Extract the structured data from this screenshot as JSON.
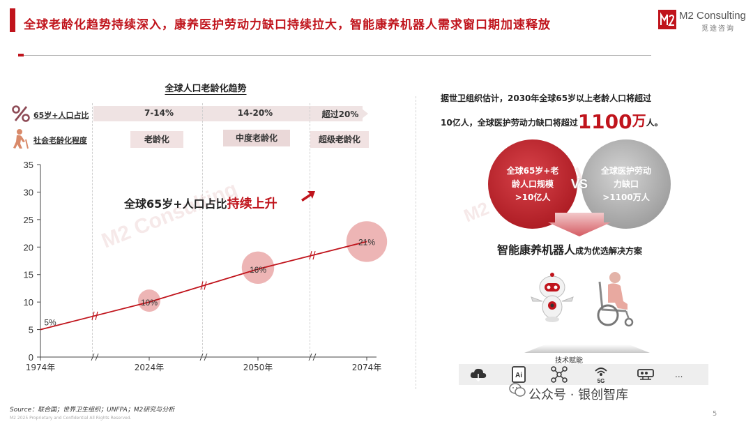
{
  "header": {
    "title": "全球老龄化趋势持续深入，康养医护劳动力缺口持续拉大，智能康养机器人需求窗口期加速释放",
    "logo_name": "M2 Consulting",
    "logo_cn": "觅途咨询"
  },
  "left": {
    "rows": {
      "ratio_label": "65岁+人口占比",
      "stage_label": "社会老龄化程度"
    },
    "bands": [
      "7-14%",
      "14-20%",
      "超过20%"
    ],
    "stages": [
      "老龄化",
      "中度老龄化",
      "超级老龄化"
    ],
    "headline_prefix": "全球65岁+人口占比",
    "headline_highlight": "持续上升",
    "watermark": "M2 Consulting",
    "watermark_cn": "觅途咨询"
  },
  "chart_data": {
    "type": "line",
    "title": "全球人口老龄化趋势",
    "x": [
      "1974年",
      "2024年",
      "2050年",
      "2074年"
    ],
    "values": [
      5,
      10,
      16,
      21
    ],
    "point_labels": [
      "5%",
      "10%",
      "16%",
      "21%"
    ],
    "ylim": [
      0,
      35
    ],
    "yticks": [
      0,
      5,
      10,
      15,
      20,
      25,
      30,
      35
    ],
    "axis_breaks": true,
    "grid": false,
    "line_color": "#c0141c",
    "bubble_color": "#e8a3a3"
  },
  "right": {
    "estimate_line1": "据世卫组织估计，2030年全球65岁以上老龄人口将超过",
    "estimate_line2_prefix": "10亿人，全球医护劳动力缺口将超过",
    "estimate_big_number": "1100",
    "estimate_big_unit": "万",
    "estimate_suffix": "人。",
    "circle_left_line1": "全球65岁+老",
    "circle_left_line2": "龄人口规模",
    "circle_left_line3": ">10亿人",
    "circle_right_line1": "全球医护劳动",
    "circle_right_line2": "力缺口",
    "circle_right_line3": ">1100万人",
    "vs": "VS",
    "solution_main": "智能康养机器人",
    "solution_suffix": "成为优选解决方案",
    "tech_label": "技术赋能",
    "tech_icons": [
      "cloud-icon",
      "ai-icon",
      "network-icon",
      "5g-icon",
      "chip-icon"
    ],
    "tech_ai_text": "Ai",
    "tech_5g_text": "5G",
    "tech_more": "..."
  },
  "footer": {
    "source": "Source：联合国；世界卫生组织；UNFPA；M2研究与分析",
    "copyright": "M2 2025 Proprietary and Confidential All Rights Reserved.",
    "wechat": "公众号 · 银创智库",
    "page_number": "5"
  },
  "colors": {
    "brand_red": "#c0141c",
    "band_bg": "#efe3e3",
    "gray": "#9a9a9a"
  }
}
